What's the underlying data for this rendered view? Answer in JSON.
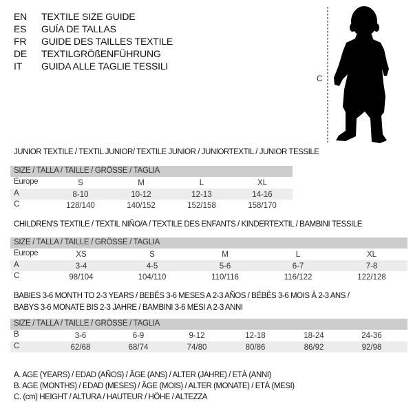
{
  "languages": [
    {
      "code": "EN",
      "title": "TEXTILE SIZE GUIDE"
    },
    {
      "code": "ES",
      "title": "GUÍA DE TALLAS"
    },
    {
      "code": "FR",
      "title": "GUIDE DES TAILLES TEXTILE"
    },
    {
      "code": "DE",
      "title": "TEXTILGRÖßENFÜHRUNG"
    },
    {
      "code": "IT",
      "title": "GUIDA ALLE TAGLIE TESSILI"
    }
  ],
  "figure": {
    "measure_label": "C",
    "icon": "baby-silhouette"
  },
  "junior": {
    "heading": "JUNIOR TEXTILE / TEXTIL JUNIOR/ TEXTILE JUNIOR / JUNIORTEXTIL / JUNIOR TESSILE",
    "size_header": "SIZE / TALLA / TAILLE / GRÖSSE / TAGLIA",
    "rows": [
      {
        "label": "Europe",
        "values": [
          "S",
          "M",
          "L",
          "XL"
        ]
      },
      {
        "label": "A",
        "values": [
          "8-10",
          "10-12",
          "12-13",
          "14-16"
        ]
      },
      {
        "label": "C",
        "values": [
          "128/140",
          "140/152",
          "152/158",
          "158/170"
        ]
      }
    ]
  },
  "children": {
    "heading": "CHILDREN'S TEXTILE / TEXTIL NIÑO/A / TEXTILE DES ENFANTS / KINDERTEXTIL / BAMBINI TESSILE",
    "size_header": "SIZE / TALLA / TAILLE / GRÖSSE / TAGLIA",
    "rows": [
      {
        "label": "Europe",
        "values": [
          "XS",
          "S",
          "M",
          "L",
          "XL"
        ]
      },
      {
        "label": "A",
        "values": [
          "3-4",
          "4-5",
          "5-6",
          "6-7",
          "7-8"
        ]
      },
      {
        "label": "C",
        "values": [
          "98/104",
          "104/110",
          "110/116",
          "116/122",
          "122/128"
        ]
      }
    ]
  },
  "babies": {
    "heading_line1": "BABIES 3-6 MONTH TO 2-3 YEARS / BEBÉS 3-6 MESES A 2-3 AÑOS / BÉBÉS 3-6 MOIS À 2-3 ANS /",
    "heading_line2": "BABYS 3-6 MONATE BIS 2-3 JAHRE / BAMBINI 3-6 MESI A 2-3 ANNI",
    "size_header": "SIZE / TALLA / TAILLE / GRÖSSE / TAGLIA",
    "rows": [
      {
        "label": "B",
        "values": [
          "3-6",
          "6-9",
          "9-12",
          "12-18",
          "18-24",
          "24-36"
        ]
      },
      {
        "label": "C",
        "values": [
          "62/68",
          "68/74",
          "74/80",
          "80/86",
          "86/92",
          "92/98"
        ]
      }
    ]
  },
  "legend": [
    "A. AGE (YEARS) / EDAD (AÑOS) / ÂGE (ANS) / ALTER (JAHRE) / ETÀ (ANNI)",
    "B. AGE (MONTHS) / EDAD (MESES) / ÂGE (MOIS) / ALTER (MONATE) / ETÀ (MESI)",
    "C. (cm) HEIGHT / ALTURA / HAUTEUR / HÖHE / ALTEZZA"
  ]
}
